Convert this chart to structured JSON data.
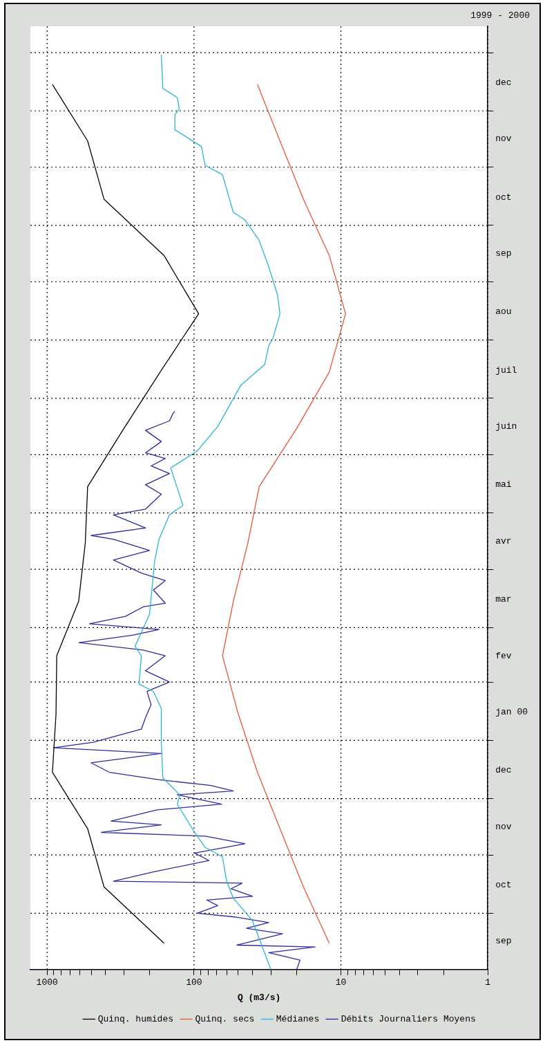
{
  "chart_data": {
    "type": "line",
    "orientation": "horizontal",
    "title": "1999 - 2000",
    "xlabel": "Q (m3/s)",
    "log": "x",
    "grid": true,
    "legend": "bottom",
    "ylim": [
      "1999-09-01",
      "2001-01-15"
    ],
    "yticks": [
      {
        "value": "1999-09-16",
        "label": "sep"
      },
      {
        "value": "1999-10-01",
        "label": null
      },
      {
        "value": "1999-10-16",
        "label": "oct"
      },
      {
        "value": "1999-11-01",
        "label": null
      },
      {
        "value": "1999-11-16",
        "label": "nov"
      },
      {
        "value": "1999-12-01",
        "label": null
      },
      {
        "value": "1999-12-16",
        "label": "dec"
      },
      {
        "value": "2000-01-01",
        "label": null
      },
      {
        "value": "2000-01-16",
        "label": "jan 00"
      },
      {
        "value": "2000-02-01",
        "label": null
      },
      {
        "value": "2000-02-15",
        "label": "fev"
      },
      {
        "value": "2000-03-01",
        "label": null
      },
      {
        "value": "2000-03-16",
        "label": "mar"
      },
      {
        "value": "2000-04-01",
        "label": null
      },
      {
        "value": "2000-04-16",
        "label": "avr"
      },
      {
        "value": "2000-05-01",
        "label": null
      },
      {
        "value": "2000-05-16",
        "label": "mai"
      },
      {
        "value": "2000-06-01",
        "label": null
      },
      {
        "value": "2000-06-16",
        "label": "juin"
      },
      {
        "value": "2000-07-01",
        "label": null
      },
      {
        "value": "2000-07-16",
        "label": "juil"
      },
      {
        "value": "2000-08-01",
        "label": null
      },
      {
        "value": "2000-08-16",
        "label": "aou"
      },
      {
        "value": "2000-09-01",
        "label": null
      },
      {
        "value": "2000-09-16",
        "label": "sep"
      },
      {
        "value": "2000-10-01",
        "label": null
      },
      {
        "value": "2000-10-16",
        "label": "oct"
      },
      {
        "value": "2000-11-01",
        "label": null
      },
      {
        "value": "2000-11-16",
        "label": "nov"
      },
      {
        "value": "2000-12-01",
        "label": null
      },
      {
        "value": "2000-12-16",
        "label": "dec"
      },
      {
        "value": "2001-01-01",
        "label": null
      }
    ],
    "xlim": [
      1300,
      1
    ],
    "xticks": [
      1,
      {
        "value": 2,
        "label": null
      },
      {
        "value": 3,
        "label": null
      },
      {
        "value": 4,
        "label": null
      },
      {
        "value": 5,
        "label": null
      },
      {
        "value": 6,
        "label": null
      },
      {
        "value": 7,
        "label": null
      },
      {
        "value": 8,
        "label": null
      },
      {
        "value": 9,
        "label": null
      },
      10,
      {
        "value": 20,
        "label": null
      },
      {
        "value": 30,
        "label": null
      },
      {
        "value": 40,
        "label": null
      },
      {
        "value": 50,
        "label": null
      },
      {
        "value": 60,
        "label": null
      },
      {
        "value": 70,
        "label": null
      },
      {
        "value": 80,
        "label": null
      },
      {
        "value": 90,
        "label": null
      },
      100,
      {
        "value": 200,
        "label": null
      },
      {
        "value": 300,
        "label": null
      },
      {
        "value": 400,
        "label": null
      },
      {
        "value": 500,
        "label": null
      },
      {
        "value": 600,
        "label": null
      },
      {
        "value": 700,
        "label": null
      },
      {
        "value": 800,
        "label": null
      },
      {
        "value": 900,
        "label": null
      },
      1000
    ],
    "series": [
      {
        "name": "Quinq. humides",
        "color": "#000000",
        "x": [
          "1999-09-15",
          "1999-10-15",
          "1999-11-15",
          "1999-12-15",
          "2000-01-15",
          "2000-02-15",
          "2000-03-15",
          "2000-04-15",
          "2000-05-15",
          "2000-06-15",
          "2000-07-15",
          "2000-08-15",
          "2000-09-15",
          "2000-10-15",
          "2000-11-15",
          "2000-12-15"
        ],
        "values": [
          160,
          410,
          530,
          920,
          870,
          860,
          610,
          550,
          530,
          300,
          170,
          93,
          160,
          410,
          530,
          920
        ]
      },
      {
        "name": "Quinq. secs",
        "color": "#e8553a",
        "x": [
          "1999-09-15",
          "1999-10-15",
          "1999-11-15",
          "1999-12-15",
          "2000-01-15",
          "2000-02-15",
          "2000-03-15",
          "2000-04-15",
          "2000-05-15",
          "2000-06-15",
          "2000-07-15",
          "2000-08-15",
          "2000-09-15",
          "2000-10-15",
          "2000-11-15",
          "2000-12-15"
        ],
        "values": [
          12,
          18,
          26,
          37,
          50,
          64,
          54,
          43,
          36,
          20,
          12,
          9.3,
          12,
          18,
          26,
          37
        ]
      },
      {
        "name": "Médianes",
        "color": "#2bb5d8",
        "x": [
          "1999-09-01",
          "1999-09-27",
          "1999-10-09",
          "1999-10-18",
          "1999-10-31",
          "1999-11-05",
          "1999-11-13",
          "1999-11-28",
          "1999-12-03",
          "1999-12-12",
          "1999-12-31",
          "2000-01-18",
          "2000-01-27",
          "2000-01-31",
          "2000-02-15",
          "2000-02-20",
          "2000-03-08",
          "2000-04-06",
          "2000-04-17",
          "2000-04-30",
          "2000-05-05",
          "2000-05-25",
          "2000-06-03",
          "2000-06-16",
          "2000-07-08",
          "2000-07-19",
          "2000-07-29",
          "2000-08-02",
          "2000-08-15",
          "2000-08-25",
          "2000-09-09",
          "2000-09-23",
          "2000-10-04",
          "2000-10-08",
          "2000-10-28",
          "2000-11-02",
          "2000-11-12",
          "2000-11-21",
          "2000-11-29",
          "2000-12-02",
          "2000-12-08",
          "2000-12-13",
          "2000-12-31"
        ],
        "values": [
          30,
          40,
          54,
          60,
          64,
          84,
          99,
          130,
          125,
          163,
          167,
          167,
          189,
          237,
          228,
          252,
          201,
          185,
          173,
          147,
          119,
          144,
          95,
          69,
          48,
          33,
          31,
          29,
          26,
          27,
          31,
          36,
          45,
          54,
          64,
          84,
          89,
          135,
          135,
          126,
          130,
          163,
          167
        ]
      },
      {
        "name": "Débits Journaliers Moyens",
        "color": "#2a2a9e",
        "x": [
          "1999-09-01",
          "1999-09-06",
          "1999-09-10",
          "1999-09-13",
          "1999-09-14",
          "1999-09-20",
          "1999-09-23",
          "1999-09-26",
          "1999-09-29",
          "1999-10-01",
          "1999-10-05",
          "1999-10-08",
          "1999-10-10",
          "1999-10-14",
          "1999-10-17",
          "1999-10-18",
          "1999-10-23",
          "1999-10-29",
          "1999-11-02",
          "1999-11-07",
          "1999-11-11",
          "1999-11-13",
          "1999-11-17",
          "1999-11-19",
          "1999-11-25",
          "1999-11-28",
          "1999-12-03",
          "1999-12-05",
          "1999-12-08",
          "1999-12-11",
          "1999-12-15",
          "1999-12-20",
          "1999-12-25",
          "1999-12-28",
          "1999-12-31",
          "2000-01-07",
          "2000-01-13",
          "2000-01-20",
          "2000-01-27",
          "2000-02-01",
          "2000-02-07",
          "2000-02-15",
          "2000-02-18",
          "2000-02-22",
          "2000-02-26",
          "2000-02-29",
          "2000-03-03",
          "2000-03-07",
          "2000-03-12",
          "2000-03-14",
          "2000-03-21",
          "2000-03-26",
          "2000-03-30",
          "2000-04-06",
          "2000-04-11",
          "2000-04-17",
          "2000-04-19",
          "2000-04-23",
          "2000-04-28",
          "2000-04-30",
          "2000-05-03",
          "2000-05-11",
          "2000-05-16",
          "2000-05-22",
          "2000-05-26",
          "2000-05-30",
          "2000-06-02",
          "2000-06-08",
          "2000-06-14",
          "2000-06-19",
          "2000-06-23",
          "2000-06-24"
        ],
        "values": [
          20,
          19,
          31,
          15,
          51,
          25,
          44,
          31,
          53,
          95,
          69,
          82,
          40,
          56,
          47,
          354,
          189,
          79,
          99,
          45,
          84,
          427,
          167,
          367,
          178,
          65,
          130,
          54,
          77,
          173,
          377,
          502,
          167,
          905,
          484,
          228,
          214,
          196,
          209,
          147,
          214,
          157,
          222,
          607,
          258,
          173,
          515,
          293,
          222,
          157,
          189,
          157,
          228,
          354,
          201,
          354,
          502,
          214,
          305,
          354,
          214,
          167,
          214,
          147,
          196,
          157,
          214,
          167,
          214,
          147,
          139,
          135
        ]
      }
    ]
  }
}
